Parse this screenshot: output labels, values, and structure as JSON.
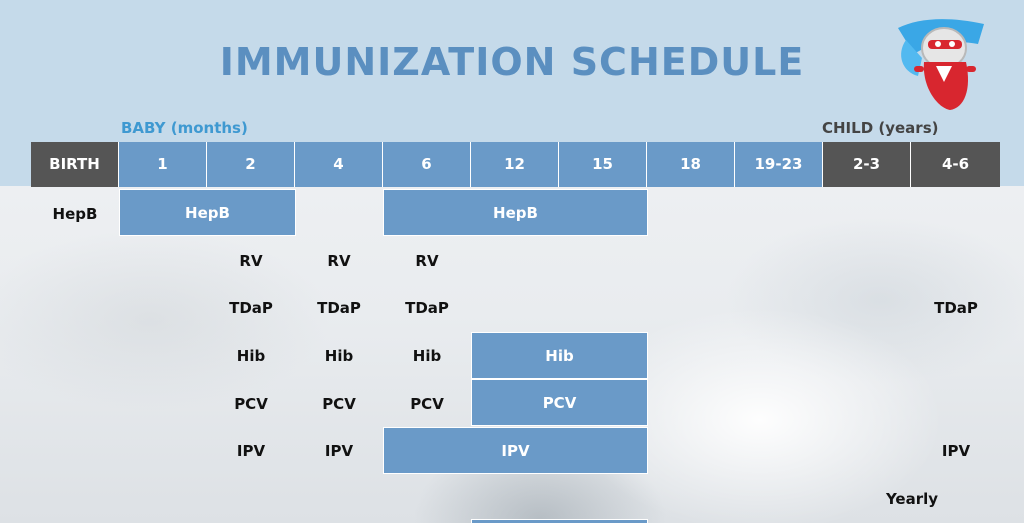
{
  "title": "IMMUNIZATION SCHEDULE",
  "labels": {
    "baby": "BABY (months)",
    "child": "CHILD (years)"
  },
  "ages": [
    "BIRTH",
    "1",
    "2",
    "4",
    "6",
    "12",
    "15",
    "18",
    "19-23",
    "2-3",
    "4-6"
  ],
  "vaccines": {
    "hepb_birth": "HepB",
    "hepb_bar1": "HepB",
    "hepb_bar2": "HepB",
    "rv": [
      "RV",
      "RV",
      "RV"
    ],
    "tdap": [
      "TDaP",
      "TDaP",
      "TDaP",
      "TDaP"
    ],
    "hib": [
      "Hib",
      "Hib",
      "Hib"
    ],
    "hib_bar": "Hib",
    "pcv": [
      "PCV",
      "PCV",
      "PCV"
    ],
    "pcv_bar": "PCV",
    "ipv": [
      "IPV",
      "IPV",
      "IPV"
    ],
    "ipv_bar": "IPV",
    "yearly": "Yearly"
  },
  "colors": {
    "header_bg": "#c5daea",
    "title": "#5b8fc0",
    "bar": "#6a9ac8",
    "dark_cell": "#555555",
    "baby_label": "#3f99d1"
  }
}
